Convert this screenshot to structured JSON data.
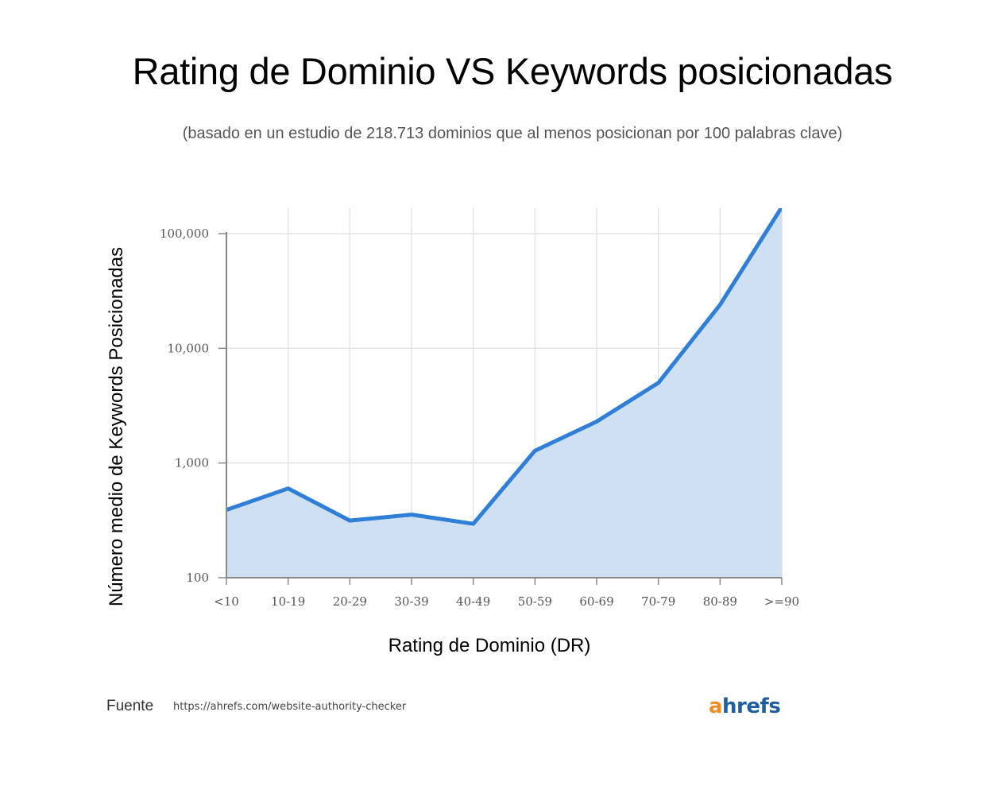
{
  "title": "Rating de Dominio VS Keywords posicionadas",
  "subtitle": "(basado en un estudio de 218.713 dominios que al menos posicionan por 100 palabras clave)",
  "source": {
    "label": "Fuente",
    "url": "https://ahrefs.com/website-authority-checker"
  },
  "logo": {
    "first": "a",
    "rest": "hrefs"
  },
  "colors": {
    "line": "#2f7ed8",
    "area": "#cfe0f2",
    "grid": "#e4e4e4",
    "axis": "#888888",
    "tick_text": "#555555"
  },
  "chart_data": {
    "type": "area",
    "title": "Rating de Dominio VS Keywords posicionadas",
    "xlabel": "Rating de Dominio (DR)",
    "ylabel": "Número medio de Keywords Posicionadas",
    "yscale": "log",
    "ylim": [
      100,
      100000
    ],
    "yticks": [
      100,
      1000,
      10000,
      100000
    ],
    "ytick_labels": [
      "100",
      "1,000",
      "10,000",
      "100,000"
    ],
    "categories": [
      "<10",
      "10-19",
      "20-29",
      "30-39",
      "40-49",
      "50-59",
      "60-69",
      "70-79",
      "80-89",
      ">=90"
    ],
    "series": [
      {
        "name": "Número medio de Keywords Posicionadas",
        "values": [
          390,
          600,
          315,
          355,
          295,
          1280,
          2300,
          5000,
          24000,
          170000
        ]
      }
    ],
    "grid": true
  }
}
